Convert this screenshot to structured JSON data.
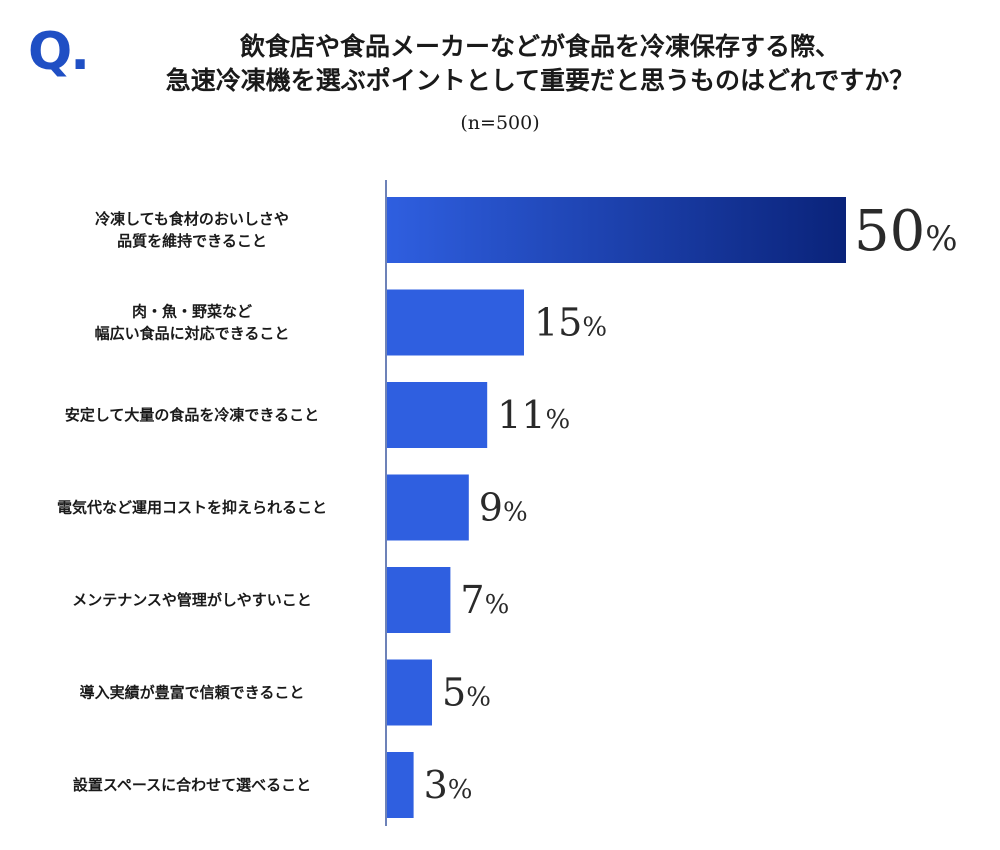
{
  "header": {
    "q_mark": "Q.",
    "title_line1": "飲食店や食品メーカーなどが食品を冷凍保存する際、",
    "title_line2": "急速冷凍機を選ぶポイントとして重要だと思うものはどれですか？",
    "sample_size": "(n=500)"
  },
  "chart_data": {
    "type": "bar",
    "orientation": "horizontal",
    "categories": [
      [
        "冷凍しても食材のおいしさや",
        "品質を維持できること"
      ],
      [
        "肉・魚・野菜など",
        "幅広い食品に対応できること"
      ],
      [
        "安定して大量の食品を冷凍できること"
      ],
      [
        "電気代など運用コストを抑えられること"
      ],
      [
        "メンテナンスや管理がしやすいこと"
      ],
      [
        "導入実績が豊富で信頼できること"
      ],
      [
        "設置スペースに合わせて選べること"
      ]
    ],
    "values": [
      50,
      15,
      11,
      9,
      7,
      5,
      3
    ],
    "value_suffix": "%",
    "xlim": [
      0,
      50
    ],
    "grid": false,
    "legend": "none",
    "colors": {
      "bar_start": "#2f5fe0",
      "bar_end_top": "#0a237a",
      "axis": "#6d82b8",
      "q_mark": "#1f4fc4"
    }
  }
}
